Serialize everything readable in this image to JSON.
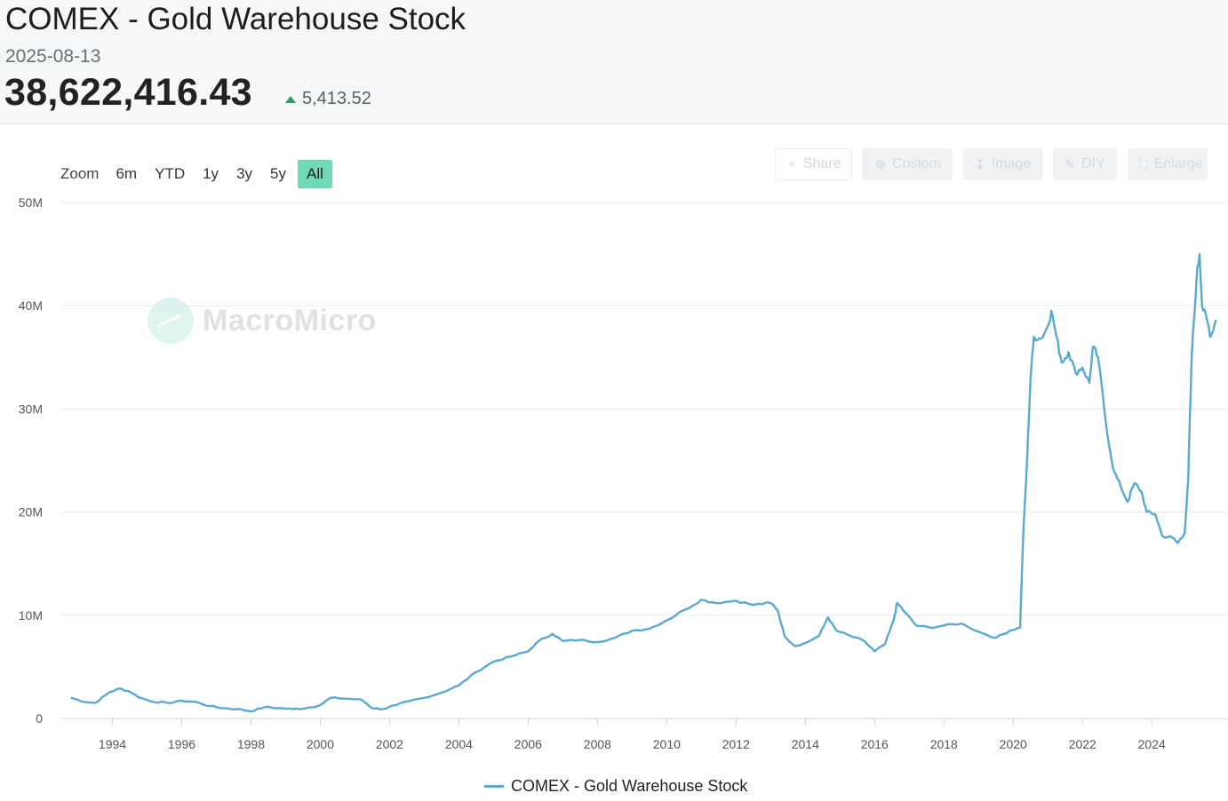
{
  "header": {
    "title": "COMEX - Gold Warehouse Stock",
    "date": "2025-08-13",
    "value": "38,622,416.43",
    "change": "5,413.52",
    "change_direction": "up",
    "change_color": "#2e9e6a"
  },
  "zoom": {
    "label": "Zoom",
    "options": [
      "6m",
      "YTD",
      "1y",
      "3y",
      "5y",
      "All"
    ],
    "active": "All",
    "active_color": "#6fd8b7"
  },
  "toolbar": [
    {
      "label": "Share",
      "icon": "share-icon"
    },
    {
      "label": "Custom",
      "icon": "gear-icon"
    },
    {
      "label": "Image",
      "icon": "download-icon"
    },
    {
      "label": "DIY",
      "icon": "pencil-icon"
    },
    {
      "label": "Enlarge",
      "icon": "expand-icon"
    }
  ],
  "watermark": {
    "text": "MacroMicro",
    "icon": "macromicro-logo-icon"
  },
  "chart_data": {
    "type": "line",
    "title": "COMEX - Gold Warehouse Stock",
    "xlabel": "",
    "ylabel": "",
    "x_ticks": [
      "1994",
      "1996",
      "1998",
      "2000",
      "2002",
      "2004",
      "2006",
      "2008",
      "2010",
      "2012",
      "2014",
      "2016",
      "2018",
      "2020",
      "2022",
      "2024"
    ],
    "y_ticks": [
      "0",
      "10M",
      "20M",
      "30M",
      "40M",
      "50M"
    ],
    "xlim": [
      1992.5,
      2026.2
    ],
    "ylim": [
      0,
      50000000
    ],
    "grid": "horizontal",
    "legend_position": "bottom-center",
    "series": [
      {
        "name": "COMEX - Gold Warehouse Stock",
        "color": "#5aa9cf",
        "points": [
          [
            1992.8,
            2000000
          ],
          [
            1993.2,
            1600000
          ],
          [
            1993.5,
            1500000
          ],
          [
            1993.9,
            2500000
          ],
          [
            1994.2,
            2900000
          ],
          [
            1994.5,
            2600000
          ],
          [
            1994.8,
            2000000
          ],
          [
            1995.2,
            1600000
          ],
          [
            1995.6,
            1500000
          ],
          [
            1996.0,
            1700000
          ],
          [
            1996.4,
            1600000
          ],
          [
            1996.8,
            1200000
          ],
          [
            1997.2,
            1000000
          ],
          [
            1997.6,
            900000
          ],
          [
            1998.0,
            700000
          ],
          [
            1998.4,
            1100000
          ],
          [
            1998.8,
            1000000
          ],
          [
            1999.2,
            900000
          ],
          [
            1999.6,
            1000000
          ],
          [
            2000.0,
            1300000
          ],
          [
            2000.3,
            2000000
          ],
          [
            2000.8,
            1900000
          ],
          [
            2001.2,
            1800000
          ],
          [
            2001.5,
            1000000
          ],
          [
            2001.8,
            900000
          ],
          [
            2002.2,
            1300000
          ],
          [
            2002.6,
            1700000
          ],
          [
            2003.0,
            2000000
          ],
          [
            2003.5,
            2500000
          ],
          [
            2004.0,
            3200000
          ],
          [
            2004.5,
            4500000
          ],
          [
            2005.0,
            5500000
          ],
          [
            2005.5,
            6000000
          ],
          [
            2006.0,
            6500000
          ],
          [
            2006.3,
            7500000
          ],
          [
            2006.7,
            8200000
          ],
          [
            2007.0,
            7500000
          ],
          [
            2007.5,
            7600000
          ],
          [
            2008.0,
            7400000
          ],
          [
            2008.5,
            7800000
          ],
          [
            2009.0,
            8500000
          ],
          [
            2009.5,
            8700000
          ],
          [
            2010.0,
            9500000
          ],
          [
            2010.5,
            10500000
          ],
          [
            2011.0,
            11500000
          ],
          [
            2011.4,
            11200000
          ],
          [
            2012.0,
            11400000
          ],
          [
            2012.5,
            11000000
          ],
          [
            2013.0,
            11200000
          ],
          [
            2013.2,
            10500000
          ],
          [
            2013.4,
            8000000
          ],
          [
            2013.7,
            7000000
          ],
          [
            2014.0,
            7300000
          ],
          [
            2014.4,
            8000000
          ],
          [
            2014.65,
            9800000
          ],
          [
            2014.9,
            8500000
          ],
          [
            2015.3,
            8000000
          ],
          [
            2015.7,
            7500000
          ],
          [
            2016.0,
            6500000
          ],
          [
            2016.3,
            7200000
          ],
          [
            2016.55,
            9500000
          ],
          [
            2016.65,
            11200000
          ],
          [
            2016.9,
            10200000
          ],
          [
            2017.2,
            9000000
          ],
          [
            2017.6,
            8800000
          ],
          [
            2018.0,
            9000000
          ],
          [
            2018.5,
            9200000
          ],
          [
            2019.0,
            8400000
          ],
          [
            2019.5,
            7800000
          ],
          [
            2019.9,
            8500000
          ],
          [
            2020.2,
            8800000
          ],
          [
            2020.28,
            17000000
          ],
          [
            2020.4,
            25000000
          ],
          [
            2020.5,
            33000000
          ],
          [
            2020.6,
            37000000
          ],
          [
            2020.8,
            36800000
          ],
          [
            2021.0,
            38000000
          ],
          [
            2021.1,
            39500000
          ],
          [
            2021.25,
            37000000
          ],
          [
            2021.4,
            34500000
          ],
          [
            2021.6,
            35500000
          ],
          [
            2021.8,
            33500000
          ],
          [
            2022.0,
            34000000
          ],
          [
            2022.2,
            32500000
          ],
          [
            2022.3,
            36000000
          ],
          [
            2022.45,
            35000000
          ],
          [
            2022.7,
            28000000
          ],
          [
            2022.9,
            24000000
          ],
          [
            2023.1,
            22500000
          ],
          [
            2023.3,
            21000000
          ],
          [
            2023.5,
            22800000
          ],
          [
            2023.7,
            22000000
          ],
          [
            2023.85,
            20000000
          ],
          [
            2024.1,
            19800000
          ],
          [
            2024.3,
            17700000
          ],
          [
            2024.6,
            17500000
          ],
          [
            2024.75,
            17000000
          ],
          [
            2024.95,
            18000000
          ],
          [
            2025.05,
            23000000
          ],
          [
            2025.15,
            35000000
          ],
          [
            2025.3,
            43000000
          ],
          [
            2025.38,
            45000000
          ],
          [
            2025.45,
            40000000
          ],
          [
            2025.6,
            38500000
          ],
          [
            2025.7,
            37000000
          ],
          [
            2025.85,
            38622416
          ]
        ]
      }
    ]
  }
}
